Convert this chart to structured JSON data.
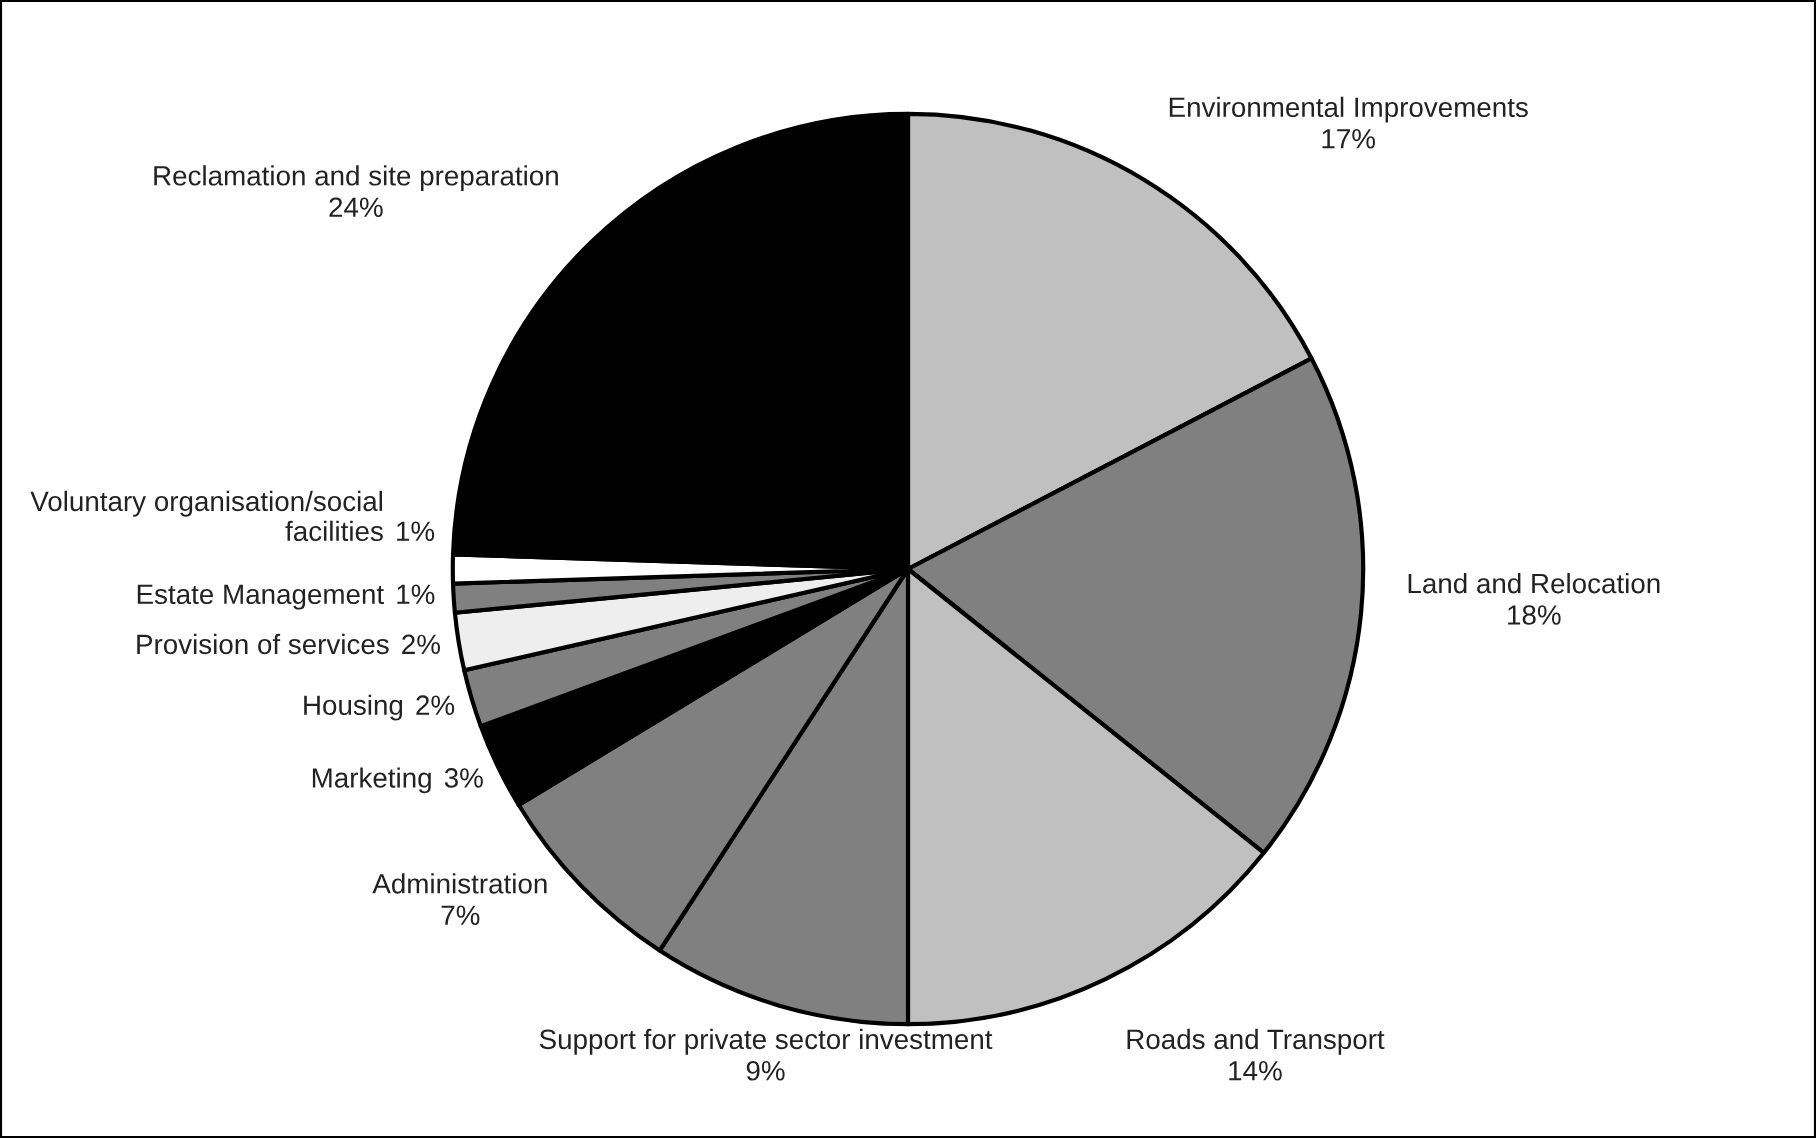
{
  "chart_data": {
    "type": "pie",
    "categories": [
      "Environmental Improvements",
      "Land and Relocation",
      "Roads and Transport",
      "Support for private sector investment",
      "Administration",
      "Marketing",
      "Housing",
      "Provision of services",
      "Estate Management",
      "Voluntary organisation/social facilities",
      "Reclamation and site preparation"
    ],
    "values": [
      17,
      18,
      14,
      9,
      7,
      3,
      2,
      2,
      1,
      1,
      24
    ],
    "colors": [
      "#c0c0c0",
      "#808080",
      "#c0c0c0",
      "#808080",
      "#808080",
      "#000000",
      "#808080",
      "#eeeeee",
      "#808080",
      "#ffffff",
      "#000000"
    ],
    "value_labels": [
      "17%",
      "18%",
      "14%",
      "9%",
      "7%",
      "3%",
      "2%",
      "2%",
      "1%",
      "1%",
      "24%"
    ]
  }
}
